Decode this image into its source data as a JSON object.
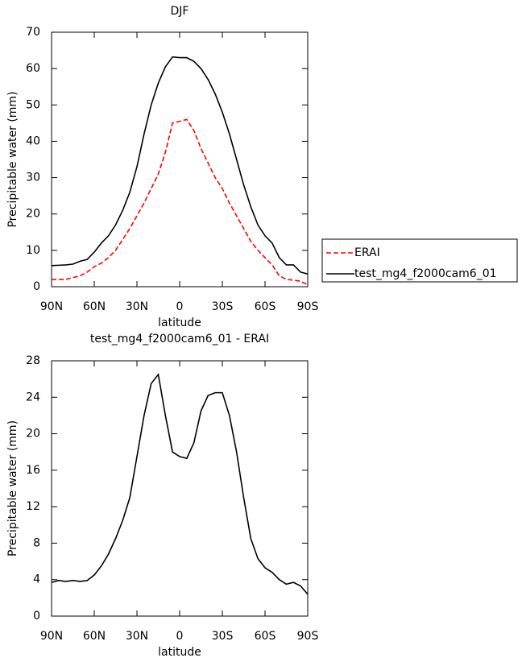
{
  "chart_data": [
    {
      "type": "line",
      "title": "DJF",
      "xlabel": "latitude",
      "ylabel": "Precipitable water (mm)",
      "x": [
        90,
        85,
        80,
        75,
        70,
        65,
        60,
        55,
        50,
        45,
        40,
        35,
        30,
        25,
        20,
        15,
        10,
        5,
        0,
        -5,
        -10,
        -15,
        -20,
        -25,
        -30,
        -35,
        -40,
        -45,
        -50,
        -55,
        -60,
        -65,
        -70,
        -75,
        -80,
        -85,
        -90
      ],
      "series": [
        {
          "name": "ERAI",
          "color": "#ff0000",
          "style": "dashed",
          "values": [
            2,
            2,
            2,
            2.5,
            3,
            4,
            5.5,
            6.5,
            8,
            10,
            13,
            16,
            19.5,
            23,
            27,
            31,
            37,
            45,
            45.5,
            46,
            43,
            38,
            34,
            30,
            27,
            23,
            19.5,
            16,
            12.5,
            10,
            8,
            6,
            3,
            2,
            1.8,
            1.5,
            0.5
          ]
        },
        {
          "name": "test_mg4_f2000cam6_01",
          "color": "#000000",
          "style": "solid",
          "values": [
            5.8,
            5.9,
            6.0,
            6.2,
            7.0,
            7.5,
            9.5,
            12,
            14,
            17,
            21,
            26,
            33,
            42,
            50,
            56,
            60.5,
            63.2,
            63,
            63,
            62,
            60,
            57,
            53,
            48,
            42,
            35,
            28,
            22,
            17,
            14,
            12,
            8,
            6,
            6,
            4,
            3.5
          ]
        }
      ],
      "xlim": [
        90,
        -90
      ],
      "xticks": [
        {
          "value": 90,
          "label": "90N"
        },
        {
          "value": 60,
          "label": "60N"
        },
        {
          "value": 30,
          "label": "30N"
        },
        0,
        {
          "value": -30,
          "label": "30S"
        },
        {
          "value": -60,
          "label": "60S"
        },
        {
          "value": -90,
          "label": "90S"
        }
      ],
      "ylim": [
        0,
        70
      ],
      "yticks": [
        0,
        10,
        20,
        30,
        40,
        50,
        60,
        70
      ],
      "grid": false,
      "legend": "right"
    },
    {
      "type": "line",
      "title": "test_mg4_f2000cam6_01 - ERAI",
      "xlabel": "latitude",
      "ylabel": "Precipitable water (mm)",
      "x": [
        90,
        85,
        80,
        75,
        70,
        65,
        60,
        55,
        50,
        45,
        40,
        35,
        30,
        25,
        20,
        15,
        10,
        5,
        0,
        -5,
        -10,
        -15,
        -20,
        -25,
        -30,
        -35,
        -40,
        -45,
        -50,
        -55,
        -60,
        -65,
        -70,
        -75,
        -80,
        -85,
        -90
      ],
      "values": [
        3.7,
        3.9,
        3.8,
        3.9,
        3.8,
        3.9,
        4.5,
        5.5,
        6.8,
        8.5,
        10.5,
        13,
        17.5,
        22,
        25.5,
        26.5,
        22,
        18,
        17.5,
        17.3,
        19,
        22.5,
        24.2,
        24.5,
        24.5,
        22,
        18,
        13,
        8.5,
        6.3,
        5.3,
        4.8,
        4,
        3.5,
        3.7,
        3.3,
        2.4
      ],
      "color": "#000000",
      "xlim": [
        90,
        -90
      ],
      "xticks": [
        {
          "value": 90,
          "label": "90N"
        },
        {
          "value": 60,
          "label": "60N"
        },
        {
          "value": 30,
          "label": "30N"
        },
        0,
        {
          "value": -30,
          "label": "30S"
        },
        {
          "value": -60,
          "label": "60S"
        },
        {
          "value": -90,
          "label": "90S"
        }
      ],
      "ylim": [
        0,
        28
      ],
      "yticks": [
        0,
        4,
        8,
        12,
        16,
        20,
        24,
        28
      ],
      "grid": false
    }
  ]
}
